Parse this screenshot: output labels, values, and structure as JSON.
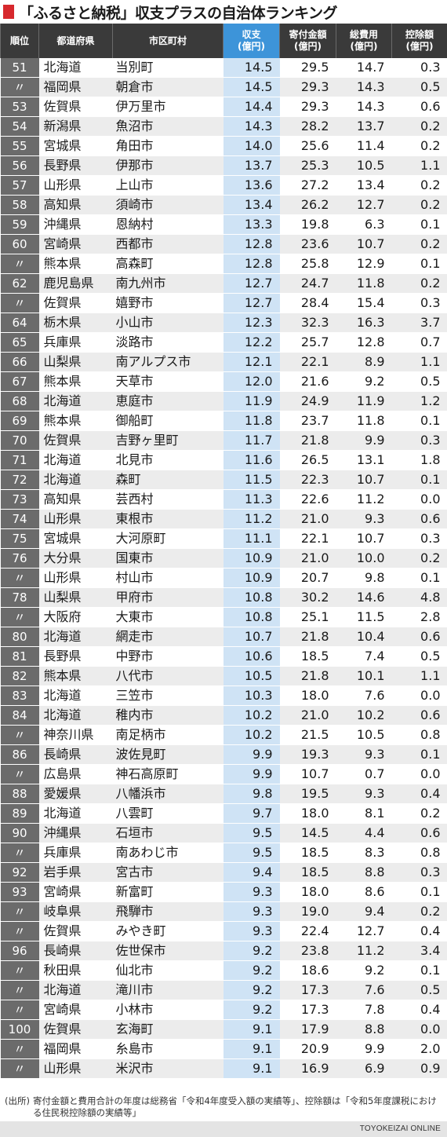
{
  "title": "「ふるさと納税」収支プラスの自治体ランキング",
  "colors": {
    "accent_red": "#d7282d",
    "header_dark": "#3a3a3a",
    "header_highlight": "#3d94d9",
    "highlight_column": "#cfe3f5",
    "rank_cell": "#6b6b6b"
  },
  "table": {
    "headers": {
      "rank": "順位",
      "prefecture": "都道府県",
      "municipality": "市区町村",
      "balance": "収支",
      "balance_unit": "(億円)",
      "donations": "寄付金額",
      "donations_unit": "(億円)",
      "costs": "総費用",
      "costs_unit": "(億円)",
      "deduction": "控除額",
      "deduction_unit": "(億円)"
    },
    "rows": [
      {
        "rank": "51",
        "pref": "北海道",
        "muni": "当別町",
        "balance": "14.5",
        "donations": "29.5",
        "costs": "14.7",
        "deduction": "0.3"
      },
      {
        "rank": "〃",
        "pref": "福岡県",
        "muni": "朝倉市",
        "balance": "14.5",
        "donations": "29.3",
        "costs": "14.3",
        "deduction": "0.5"
      },
      {
        "rank": "53",
        "pref": "佐賀県",
        "muni": "伊万里市",
        "balance": "14.4",
        "donations": "29.3",
        "costs": "14.3",
        "deduction": "0.6"
      },
      {
        "rank": "54",
        "pref": "新潟県",
        "muni": "魚沼市",
        "balance": "14.3",
        "donations": "28.2",
        "costs": "13.7",
        "deduction": "0.2"
      },
      {
        "rank": "55",
        "pref": "宮城県",
        "muni": "角田市",
        "balance": "14.0",
        "donations": "25.6",
        "costs": "11.4",
        "deduction": "0.2"
      },
      {
        "rank": "56",
        "pref": "長野県",
        "muni": "伊那市",
        "balance": "13.7",
        "donations": "25.3",
        "costs": "10.5",
        "deduction": "1.1"
      },
      {
        "rank": "57",
        "pref": "山形県",
        "muni": "上山市",
        "balance": "13.6",
        "donations": "27.2",
        "costs": "13.4",
        "deduction": "0.2"
      },
      {
        "rank": "58",
        "pref": "高知県",
        "muni": "須崎市",
        "balance": "13.4",
        "donations": "26.2",
        "costs": "12.7",
        "deduction": "0.2"
      },
      {
        "rank": "59",
        "pref": "沖縄県",
        "muni": "恩納村",
        "balance": "13.3",
        "donations": "19.8",
        "costs": "6.3",
        "deduction": "0.1"
      },
      {
        "rank": "60",
        "pref": "宮崎県",
        "muni": "西都市",
        "balance": "12.8",
        "donations": "23.6",
        "costs": "10.7",
        "deduction": "0.2"
      },
      {
        "rank": "〃",
        "pref": "熊本県",
        "muni": "高森町",
        "balance": "12.8",
        "donations": "25.8",
        "costs": "12.9",
        "deduction": "0.1"
      },
      {
        "rank": "62",
        "pref": "鹿児島県",
        "muni": "南九州市",
        "balance": "12.7",
        "donations": "24.7",
        "costs": "11.8",
        "deduction": "0.2"
      },
      {
        "rank": "〃",
        "pref": "佐賀県",
        "muni": "嬉野市",
        "balance": "12.7",
        "donations": "28.4",
        "costs": "15.4",
        "deduction": "0.3"
      },
      {
        "rank": "64",
        "pref": "栃木県",
        "muni": "小山市",
        "balance": "12.3",
        "donations": "32.3",
        "costs": "16.3",
        "deduction": "3.7"
      },
      {
        "rank": "65",
        "pref": "兵庫県",
        "muni": "淡路市",
        "balance": "12.2",
        "donations": "25.7",
        "costs": "12.8",
        "deduction": "0.7"
      },
      {
        "rank": "66",
        "pref": "山梨県",
        "muni": "南アルプス市",
        "balance": "12.1",
        "donations": "22.1",
        "costs": "8.9",
        "deduction": "1.1"
      },
      {
        "rank": "67",
        "pref": "熊本県",
        "muni": "天草市",
        "balance": "12.0",
        "donations": "21.6",
        "costs": "9.2",
        "deduction": "0.5"
      },
      {
        "rank": "68",
        "pref": "北海道",
        "muni": "恵庭市",
        "balance": "11.9",
        "donations": "24.9",
        "costs": "11.9",
        "deduction": "1.2"
      },
      {
        "rank": "69",
        "pref": "熊本県",
        "muni": "御船町",
        "balance": "11.8",
        "donations": "23.7",
        "costs": "11.8",
        "deduction": "0.1"
      },
      {
        "rank": "70",
        "pref": "佐賀県",
        "muni": "吉野ヶ里町",
        "balance": "11.7",
        "donations": "21.8",
        "costs": "9.9",
        "deduction": "0.3"
      },
      {
        "rank": "71",
        "pref": "北海道",
        "muni": "北見市",
        "balance": "11.6",
        "donations": "26.5",
        "costs": "13.1",
        "deduction": "1.8"
      },
      {
        "rank": "72",
        "pref": "北海道",
        "muni": "森町",
        "balance": "11.5",
        "donations": "22.3",
        "costs": "10.7",
        "deduction": "0.1"
      },
      {
        "rank": "73",
        "pref": "高知県",
        "muni": "芸西村",
        "balance": "11.3",
        "donations": "22.6",
        "costs": "11.2",
        "deduction": "0.0"
      },
      {
        "rank": "74",
        "pref": "山形県",
        "muni": "東根市",
        "balance": "11.2",
        "donations": "21.0",
        "costs": "9.3",
        "deduction": "0.6"
      },
      {
        "rank": "75",
        "pref": "宮城県",
        "muni": "大河原町",
        "balance": "11.1",
        "donations": "22.1",
        "costs": "10.7",
        "deduction": "0.3"
      },
      {
        "rank": "76",
        "pref": "大分県",
        "muni": "国東市",
        "balance": "10.9",
        "donations": "21.0",
        "costs": "10.0",
        "deduction": "0.2"
      },
      {
        "rank": "〃",
        "pref": "山形県",
        "muni": "村山市",
        "balance": "10.9",
        "donations": "20.7",
        "costs": "9.8",
        "deduction": "0.1"
      },
      {
        "rank": "78",
        "pref": "山梨県",
        "muni": "甲府市",
        "balance": "10.8",
        "donations": "30.2",
        "costs": "14.6",
        "deduction": "4.8"
      },
      {
        "rank": "〃",
        "pref": "大阪府",
        "muni": "大東市",
        "balance": "10.8",
        "donations": "25.1",
        "costs": "11.5",
        "deduction": "2.8"
      },
      {
        "rank": "80",
        "pref": "北海道",
        "muni": "網走市",
        "balance": "10.7",
        "donations": "21.8",
        "costs": "10.4",
        "deduction": "0.6"
      },
      {
        "rank": "81",
        "pref": "長野県",
        "muni": "中野市",
        "balance": "10.6",
        "donations": "18.5",
        "costs": "7.4",
        "deduction": "0.5"
      },
      {
        "rank": "82",
        "pref": "熊本県",
        "muni": "八代市",
        "balance": "10.5",
        "donations": "21.8",
        "costs": "10.1",
        "deduction": "1.1"
      },
      {
        "rank": "83",
        "pref": "北海道",
        "muni": "三笠市",
        "balance": "10.3",
        "donations": "18.0",
        "costs": "7.6",
        "deduction": "0.0"
      },
      {
        "rank": "84",
        "pref": "北海道",
        "muni": "稚内市",
        "balance": "10.2",
        "donations": "21.0",
        "costs": "10.2",
        "deduction": "0.6"
      },
      {
        "rank": "〃",
        "pref": "神奈川県",
        "muni": "南足柄市",
        "balance": "10.2",
        "donations": "21.5",
        "costs": "10.5",
        "deduction": "0.8"
      },
      {
        "rank": "86",
        "pref": "長崎県",
        "muni": "波佐見町",
        "balance": "9.9",
        "donations": "19.3",
        "costs": "9.3",
        "deduction": "0.1"
      },
      {
        "rank": "〃",
        "pref": "広島県",
        "muni": "神石高原町",
        "balance": "9.9",
        "donations": "10.7",
        "costs": "0.7",
        "deduction": "0.0"
      },
      {
        "rank": "88",
        "pref": "愛媛県",
        "muni": "八幡浜市",
        "balance": "9.8",
        "donations": "19.5",
        "costs": "9.3",
        "deduction": "0.4"
      },
      {
        "rank": "89",
        "pref": "北海道",
        "muni": "八雲町",
        "balance": "9.7",
        "donations": "18.0",
        "costs": "8.1",
        "deduction": "0.2"
      },
      {
        "rank": "90",
        "pref": "沖縄県",
        "muni": "石垣市",
        "balance": "9.5",
        "donations": "14.5",
        "costs": "4.4",
        "deduction": "0.6"
      },
      {
        "rank": "〃",
        "pref": "兵庫県",
        "muni": "南あわじ市",
        "balance": "9.5",
        "donations": "18.5",
        "costs": "8.3",
        "deduction": "0.8"
      },
      {
        "rank": "92",
        "pref": "岩手県",
        "muni": "宮古市",
        "balance": "9.4",
        "donations": "18.5",
        "costs": "8.8",
        "deduction": "0.3"
      },
      {
        "rank": "93",
        "pref": "宮崎県",
        "muni": "新富町",
        "balance": "9.3",
        "donations": "18.0",
        "costs": "8.6",
        "deduction": "0.1"
      },
      {
        "rank": "〃",
        "pref": "岐阜県",
        "muni": "飛騨市",
        "balance": "9.3",
        "donations": "19.0",
        "costs": "9.4",
        "deduction": "0.2"
      },
      {
        "rank": "〃",
        "pref": "佐賀県",
        "muni": "みやき町",
        "balance": "9.3",
        "donations": "22.4",
        "costs": "12.7",
        "deduction": "0.4"
      },
      {
        "rank": "96",
        "pref": "長崎県",
        "muni": "佐世保市",
        "balance": "9.2",
        "donations": "23.8",
        "costs": "11.2",
        "deduction": "3.4"
      },
      {
        "rank": "〃",
        "pref": "秋田県",
        "muni": "仙北市",
        "balance": "9.2",
        "donations": "18.6",
        "costs": "9.2",
        "deduction": "0.1"
      },
      {
        "rank": "〃",
        "pref": "北海道",
        "muni": "滝川市",
        "balance": "9.2",
        "donations": "17.3",
        "costs": "7.6",
        "deduction": "0.5"
      },
      {
        "rank": "〃",
        "pref": "宮崎県",
        "muni": "小林市",
        "balance": "9.2",
        "donations": "17.3",
        "costs": "7.8",
        "deduction": "0.4"
      },
      {
        "rank": "100",
        "pref": "佐賀県",
        "muni": "玄海町",
        "balance": "9.1",
        "donations": "17.9",
        "costs": "8.8",
        "deduction": "0.0"
      },
      {
        "rank": "〃",
        "pref": "福岡県",
        "muni": "糸島市",
        "balance": "9.1",
        "donations": "20.9",
        "costs": "9.9",
        "deduction": "2.0"
      },
      {
        "rank": "〃",
        "pref": "山形県",
        "muni": "米沢市",
        "balance": "9.1",
        "donations": "16.9",
        "costs": "6.9",
        "deduction": "0.9"
      }
    ]
  },
  "source": {
    "label": "(出所)",
    "text": "寄付金額と費用合計の年度は総務省「令和4年度受入額の実績等」、控除額は「令和5年度課税における住民税控除額の実績等」"
  },
  "footer": {
    "brand": "TOYOKEIZAI ONLINE"
  }
}
